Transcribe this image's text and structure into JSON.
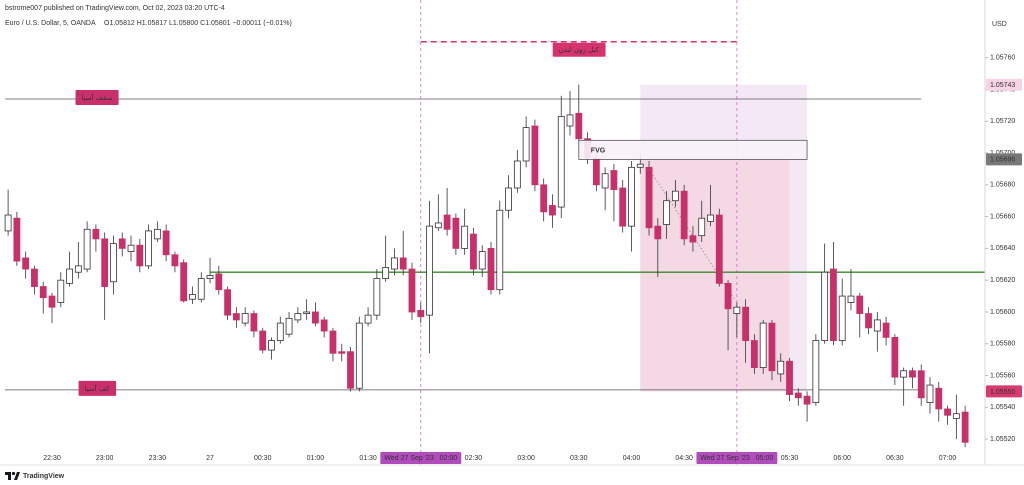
{
  "header": {
    "publisher": "bstrome007 published on TradingView.com, Oct 02, 2023 03:20 UTC-4",
    "symbol": "Euro / U.S. Dollar, 5, OANDA",
    "ohlc": "O1.05812 H1.05817 L1.05800 C1.05801 −0.00011 (−0.01%)"
  },
  "footer": {
    "brand": "TradingView"
  },
  "chart_data": {
    "type": "candlestick",
    "y_unit": "USD",
    "categories": [
      null,
      null,
      null,
      null,
      null,
      "22:30",
      null,
      null,
      null,
      null,
      null,
      "23:00",
      null,
      null,
      null,
      null,
      null,
      "23:30",
      null,
      null,
      null,
      null,
      null,
      "27",
      null,
      null,
      null,
      null,
      null,
      "00:30",
      null,
      null,
      null,
      null,
      null,
      "01:00",
      null,
      null,
      null,
      null,
      null,
      "01:30",
      null,
      null,
      null,
      null,
      null,
      "Wed 27 Sep '23   02:00",
      null,
      null,
      null,
      null,
      null,
      "02:30",
      null,
      null,
      null,
      null,
      null,
      "03:00",
      null,
      null,
      null,
      null,
      null,
      "03:30",
      null,
      null,
      null,
      null,
      null,
      "04:00",
      null,
      null,
      null,
      null,
      null,
      "04:30",
      null,
      null,
      null,
      null,
      null,
      "Wed 27 Sep '23   05:00",
      null,
      null,
      null,
      null,
      null,
      "05:30",
      null,
      null,
      null,
      null,
      null,
      "06:00",
      null,
      null,
      null,
      null,
      null,
      "06:30",
      null,
      null,
      null,
      null,
      null,
      "07:00",
      null,
      null
    ],
    "open": [
      1.05651,
      1.05659,
      1.05634,
      1.05627,
      1.05616,
      1.0561,
      1.05606,
      1.05618,
      1.05625,
      1.05627,
      1.05652,
      1.05646,
      1.05619,
      1.05646,
      1.05638,
      1.05642,
      1.05629,
      1.05646,
      1.05651,
      1.05636,
      1.05631,
      1.05608,
      1.05608,
      1.05621,
      1.05624,
      1.05614,
      1.05599,
      1.05593,
      1.05599,
      1.05588,
      1.05576,
      1.05582,
      1.05586,
      1.05595,
      1.05599,
      1.056,
      1.05595,
      1.05588,
      1.05575,
      1.05575,
      1.05552,
      1.05593,
      1.05598,
      1.05621,
      1.05627,
      1.05634,
      1.05627,
      1.05601,
      1.05598,
      1.05653,
      1.05661,
      1.05659,
      1.0564,
      1.05649,
      1.05627,
      1.0564,
      1.05614,
      1.05664,
      1.05678,
      1.05695,
      1.05717,
      1.0568,
      1.05667,
      1.05666,
      1.05717,
      1.05725,
      1.05709,
      1.05697,
      1.05678,
      1.05689,
      1.05678,
      1.05654,
      1.05691,
      1.05691,
      1.05654,
      1.05655,
      1.0567,
      1.05676,
      1.05648,
      1.05648,
      1.05657,
      1.05661,
      1.05618,
      1.05599,
      1.05603,
      1.05582,
      1.05565,
      1.05593,
      1.05561,
      1.05569,
      1.05549,
      1.05547,
      1.05543,
      1.05582,
      1.05627,
      1.05582,
      1.05606,
      1.0561,
      1.05599,
      1.05588,
      1.05593,
      1.05584,
      1.05559,
      1.05563,
      1.05563,
      1.05543,
      1.05552,
      1.05539,
      1.05533,
      1.05537
    ],
    "high": [
      1.05677,
      1.05663,
      1.05638,
      1.05629,
      1.05619,
      1.05612,
      1.05625,
      1.05638,
      1.05644,
      1.05657,
      1.05655,
      1.0565,
      1.05648,
      1.0565,
      1.05648,
      1.05646,
      1.05655,
      1.05657,
      1.05655,
      1.05638,
      1.05633,
      1.05616,
      1.05625,
      1.05634,
      1.05629,
      1.05616,
      1.05603,
      1.05603,
      1.05601,
      1.0559,
      1.05584,
      1.05597,
      1.056,
      1.05603,
      1.05608,
      1.05606,
      1.05597,
      1.0559,
      1.0558,
      1.05578,
      1.05597,
      1.05603,
      1.05627,
      1.05648,
      1.0564,
      1.05651,
      1.05631,
      1.05606,
      1.0567,
      1.05674,
      1.05678,
      1.05662,
      1.05665,
      1.05653,
      1.05642,
      1.05644,
      1.0567,
      1.05686,
      1.05702,
      1.05723,
      1.05721,
      1.05684,
      1.05674,
      1.05736,
      1.05739,
      1.05743,
      1.05713,
      1.05702,
      1.05691,
      1.05693,
      1.05683,
      1.05695,
      1.057,
      1.05695,
      1.05659,
      1.05676,
      1.05683,
      1.0568,
      1.05654,
      1.0567,
      1.0568,
      1.05665,
      1.0562,
      1.05606,
      1.05608,
      1.05586,
      1.05595,
      1.05595,
      1.05574,
      1.05571,
      1.05552,
      1.0555,
      1.05586,
      1.05643,
      1.05644,
      1.05621,
      1.05627,
      1.05612,
      1.05603,
      1.056,
      1.05597,
      1.05586,
      1.05565,
      1.05565,
      1.05567,
      1.05559,
      1.05556,
      1.05541,
      1.05548,
      1.05541
    ],
    "low": [
      1.05648,
      1.05629,
      1.05621,
      1.05611,
      1.05599,
      1.05593,
      1.05603,
      1.05616,
      1.05621,
      1.05625,
      1.05638,
      1.05595,
      1.05611,
      1.05635,
      1.05632,
      1.05625,
      1.05627,
      1.05644,
      1.05632,
      1.05625,
      1.05606,
      1.05605,
      1.05606,
      1.05618,
      1.05611,
      1.05595,
      1.0559,
      1.05591,
      1.05584,
      1.05574,
      1.0557,
      1.0558,
      1.05584,
      1.05593,
      1.05595,
      1.05591,
      1.05584,
      1.05569,
      1.05569,
      1.0555,
      1.0555,
      1.05591,
      1.05595,
      1.05619,
      1.05623,
      1.05623,
      1.05595,
      1.05593,
      1.05574,
      1.05651,
      1.05648,
      1.05636,
      1.05636,
      1.05623,
      1.05622,
      1.05611,
      1.05611,
      1.05659,
      1.05675,
      1.05691,
      1.05676,
      1.05657,
      1.05653,
      1.05659,
      1.05711,
      1.05706,
      1.05693,
      1.05676,
      1.05664,
      1.05657,
      1.0565,
      1.05638,
      1.05687,
      1.05648,
      1.05622,
      1.05646,
      1.05666,
      1.05642,
      1.05638,
      1.05644,
      1.05654,
      1.05616,
      1.05576,
      1.05584,
      1.05568,
      1.05561,
      1.05561,
      1.05557,
      1.05556,
      1.05544,
      1.05541,
      1.05531,
      1.05541,
      1.0558,
      1.05579,
      1.05579,
      1.05601,
      1.05584,
      1.05586,
      1.05575,
      1.05579,
      1.05554,
      1.05541,
      1.05552,
      1.05541,
      1.05536,
      1.05531,
      1.05529,
      1.0552,
      1.05515
    ],
    "close": [
      1.05661,
      1.05632,
      1.05627,
      1.05616,
      1.05609,
      1.05603,
      1.0562,
      1.05627,
      1.05629,
      1.05652,
      1.05646,
      1.05616,
      1.05643,
      1.0564,
      1.05642,
      1.05629,
      1.05651,
      1.05652,
      1.05636,
      1.05629,
      1.05607,
      1.05611,
      1.05621,
      1.05623,
      1.05614,
      1.05598,
      1.05595,
      1.05599,
      1.05588,
      1.05576,
      1.05582,
      1.05593,
      1.05596,
      1.05599,
      1.056,
      1.05593,
      1.05588,
      1.05574,
      1.05574,
      1.05552,
      1.05593,
      1.05598,
      1.05621,
      1.05628,
      1.05634,
      1.05627,
      1.056,
      1.05597,
      1.05654,
      1.05656,
      1.05652,
      1.0564,
      1.05654,
      1.05627,
      1.05638,
      1.05614,
      1.05664,
      1.05678,
      1.05695,
      1.05716,
      1.0568,
      1.05663,
      1.05661,
      1.05723,
      1.05724,
      1.05709,
      1.05697,
      1.0568,
      1.05687,
      1.05677,
      1.05654,
      1.05691,
      1.05693,
      1.05653,
      1.05646,
      1.0567,
      1.05676,
      1.05646,
      1.05644,
      1.05659,
      1.05661,
      1.05618,
      1.05602,
      1.05603,
      1.05582,
      1.05565,
      1.05593,
      1.05563,
      1.05569,
      1.05548,
      1.05546,
      1.05542,
      1.05582,
      1.05625,
      1.05582,
      1.0561,
      1.0561,
      1.05599,
      1.0559,
      1.05595,
      1.05584,
      1.05559,
      1.05563,
      1.05559,
      1.05546,
      1.05554,
      1.05539,
      1.05535,
      1.05536,
      1.05518
    ],
    "up_color": "#ffffff",
    "down_color": "#c8306b",
    "wick_color": "#333333",
    "ylim": [
      1.0551,
      1.0579
    ],
    "yticks": [
      {
        "value": 1.0576,
        "label": "1.05760"
      },
      {
        "value": 1.0574,
        "label": "1.05740"
      },
      {
        "value": 1.0572,
        "label": "1.05720"
      },
      {
        "value": 1.057,
        "label": "1.05700"
      },
      {
        "value": 1.0568,
        "label": "1.05680"
      },
      {
        "value": 1.0566,
        "label": "1.05660"
      },
      {
        "value": 1.0564,
        "label": "1.05640"
      },
      {
        "value": 1.0562,
        "label": "1.05620"
      },
      {
        "value": 1.056,
        "label": "1.05600"
      },
      {
        "value": 1.0558,
        "label": "1.05580"
      },
      {
        "value": 1.0556,
        "label": "1.05560"
      },
      {
        "value": 1.0554,
        "label": "1.05540"
      },
      {
        "value": 1.0552,
        "label": "1.05520"
      }
    ],
    "grid": false,
    "price_labels": [
      {
        "value": 1.05743,
        "label": "1.05743",
        "color": "#f6d3e6",
        "text_color": "#333333"
      },
      {
        "value": 1.05696,
        "label": "1.05696",
        "color": "#787878",
        "text_color": "#ffffff"
      },
      {
        "value": 1.0555,
        "label": "1.05550",
        "color": "#d63a6e",
        "text_color": "#ffffff"
      }
    ],
    "hlines": [
      {
        "label": "سقف آسیا",
        "value": 1.05734,
        "end": 104,
        "color": "#555555"
      },
      {
        "label": "کف آسیا",
        "value": 1.05551,
        "end": 104,
        "color": "#555555"
      },
      {
        "value": 1.05625,
        "start": 23,
        "color": "#3a8a2e"
      }
    ],
    "kill_zone": {
      "label": "کیل زون لندن",
      "value": 1.0577,
      "start": 47,
      "end": 83,
      "color": "#d6336c"
    },
    "vlines": [
      47,
      83
    ],
    "vline_color": "#d86ad0",
    "boxes": [
      {
        "top": 1.05743,
        "bottom": 1.0555,
        "start": 72,
        "end": 91,
        "color": "#f4e8f6"
      },
      {
        "top": 1.05696,
        "bottom": 1.0555,
        "start": 72,
        "end": 89,
        "color": "#f4d9e5"
      },
      {
        "label": "FVG",
        "top": 1.05708,
        "bottom": 1.05696,
        "start": 65,
        "end": 91,
        "color": "#f8f1f8"
      }
    ]
  }
}
